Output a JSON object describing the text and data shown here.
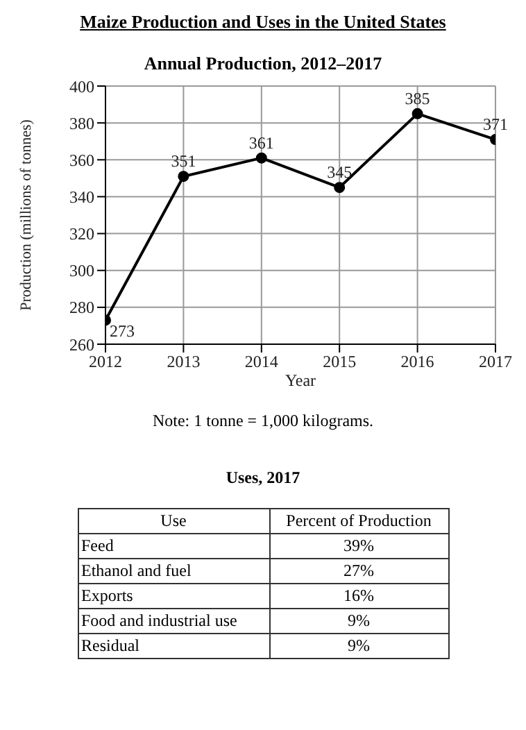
{
  "chart_data": [
    {
      "type": "line",
      "title": "Maize Production and Uses in the United States",
      "subtitle": "Annual Production, 2012–2017",
      "xlabel": "Year",
      "ylabel": "Production (millions of tonnes)",
      "x": [
        2012,
        2013,
        2014,
        2015,
        2016,
        2017
      ],
      "series": [
        {
          "color": "#000000",
          "values": [
            273,
            351,
            361,
            345,
            385,
            371
          ]
        }
      ],
      "xlim": [
        2012,
        2017
      ],
      "xticks": [
        2012,
        2013,
        2014,
        2015,
        2016,
        2017
      ],
      "ylim": [
        260,
        400
      ],
      "yticks": [
        260,
        280,
        300,
        320,
        340,
        360,
        380,
        400
      ],
      "grid": true,
      "marker": "circle",
      "line_style": "solid",
      "data_labels": true,
      "annotations": [
        "Note: 1 tonne = 1,000 kilograms."
      ]
    },
    {
      "type": "other",
      "title": "Uses, 2017",
      "xlabel": "Use",
      "ylabel": "Percent of Production",
      "categories": [
        "Feed",
        "Ethanol and fuel",
        "Exports",
        "Food and industrial use",
        "Residual"
      ],
      "values": [
        39,
        27,
        16,
        9,
        9
      ],
      "value_labels": [
        "39%",
        "27%",
        "16%",
        "9%",
        "9%"
      ]
    }
  ]
}
